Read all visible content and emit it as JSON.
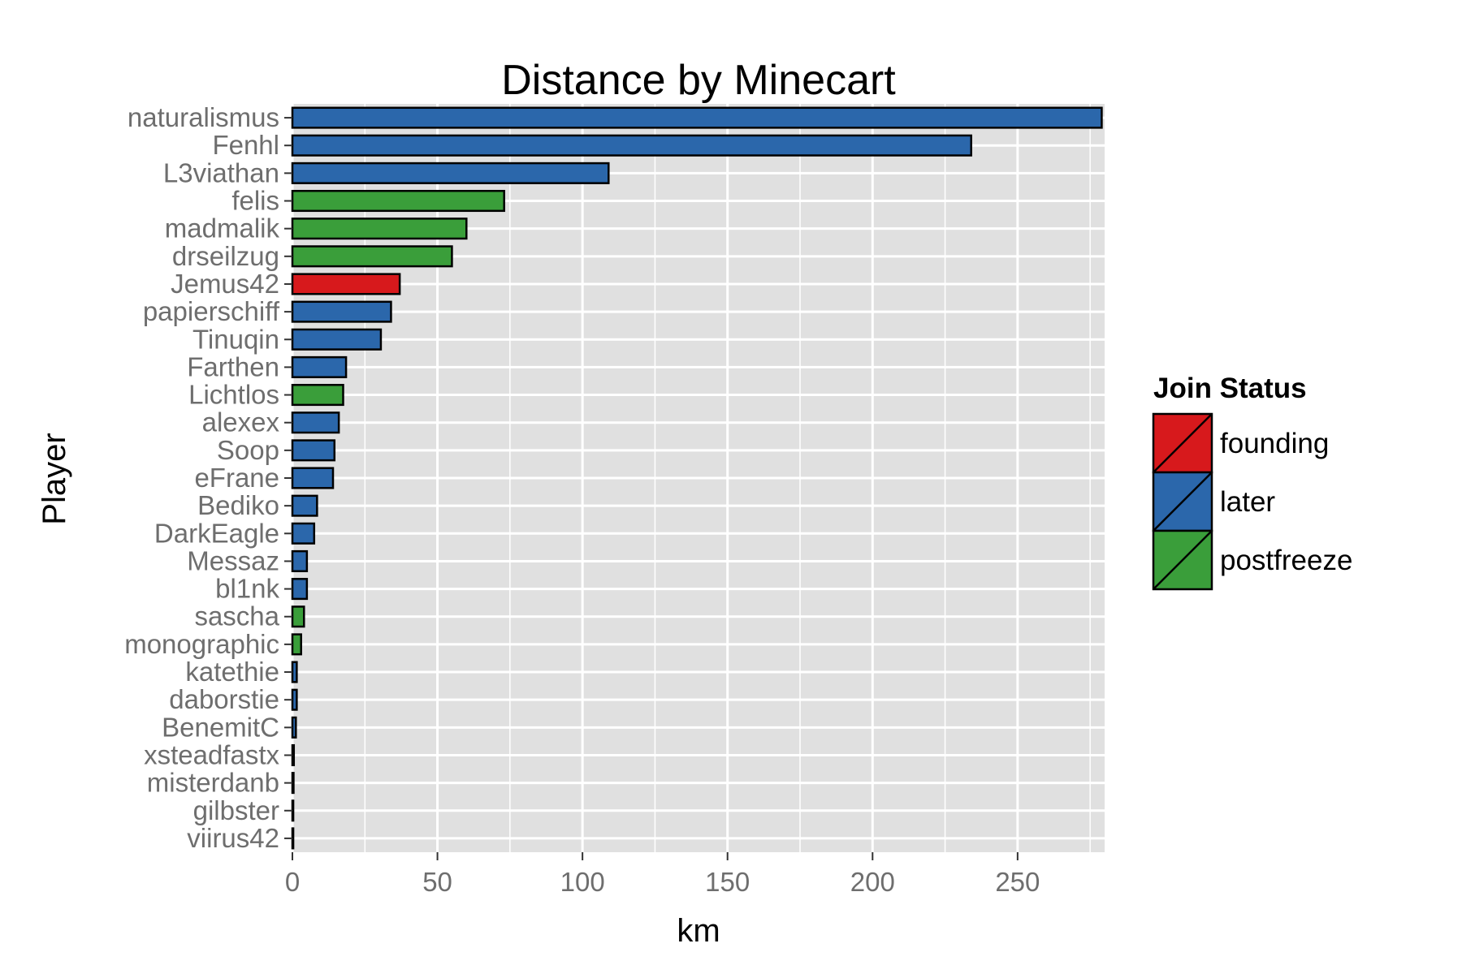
{
  "chart_data": {
    "type": "bar",
    "orientation": "horizontal",
    "title": "Distance by Minecart",
    "xlabel": "km",
    "ylabel": "Player",
    "xlim": [
      0,
      280
    ],
    "xticks": [
      0,
      50,
      100,
      150,
      200,
      250
    ],
    "grid": true,
    "legend": {
      "title": "Join Status",
      "placement": "right",
      "entries": [
        {
          "name": "founding",
          "color": "#d7191c"
        },
        {
          "name": "later",
          "color": "#2b67ab"
        },
        {
          "name": "postfreeze",
          "color": "#3a9e3a"
        }
      ]
    },
    "categories": [
      "naturalismus",
      "Fenhl",
      "L3viathan",
      "felis",
      "madmalik",
      "drseilzug",
      "Jemus42",
      "papierschiff",
      "Tinuqin",
      "Farthen",
      "Lichtlos",
      "alexex",
      "Soop",
      "eFrane",
      "Bediko",
      "DarkEagle",
      "Messaz",
      "bl1nk",
      "sascha",
      "monographic",
      "katethie",
      "daborstie",
      "BenemitC",
      "xsteadfastx",
      "misterdanb",
      "gilbster",
      "viirus42"
    ],
    "values": [
      279,
      234,
      109,
      73,
      60,
      55,
      37,
      34,
      30.5,
      18.5,
      17.5,
      16,
      14.5,
      14,
      8.5,
      7.5,
      5,
      5,
      4,
      3,
      1.5,
      1.5,
      1.2,
      0.5,
      0.4,
      0.3,
      0.3
    ],
    "groups": [
      "later",
      "later",
      "later",
      "postfreeze",
      "postfreeze",
      "postfreeze",
      "founding",
      "later",
      "later",
      "later",
      "postfreeze",
      "later",
      "later",
      "later",
      "later",
      "later",
      "later",
      "later",
      "postfreeze",
      "postfreeze",
      "later",
      "later",
      "later",
      "later",
      "later",
      "later",
      "later"
    ]
  },
  "colors": {
    "panel_background": "#e0e0e0",
    "grid_line": "#ffffff",
    "bar_outline": "#000000",
    "tick_text": "#6e6e6e"
  }
}
